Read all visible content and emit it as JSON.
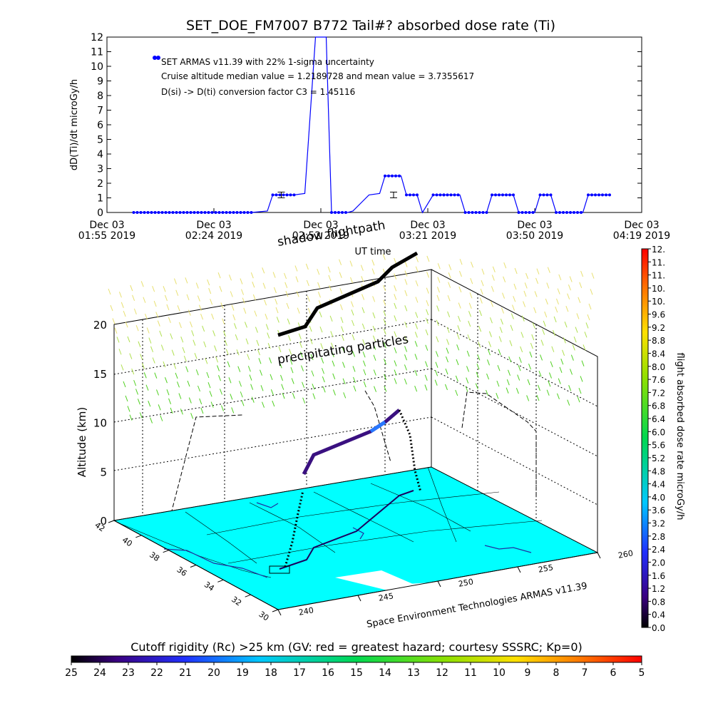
{
  "chart_data": [
    {
      "type": "line",
      "title": "SET_DOE_FM7007  B772 Tail#? absorbed dose rate (Ti)",
      "ylabel": "dD(Ti)/dt microGy/h",
      "xlabel": "UT time",
      "ylim": [
        0,
        12
      ],
      "yticks": [
        "0",
        "1",
        "2",
        "3",
        "4",
        "5",
        "6",
        "7",
        "8",
        "9",
        "10",
        "11",
        "12"
      ],
      "xtick_labels": [
        {
          "date": "Dec 03",
          "time": "01:55 2019"
        },
        {
          "date": "Dec 03",
          "time": "02:24 2019"
        },
        {
          "date": "Dec 03",
          "time": "02:52 2019"
        },
        {
          "date": "Dec 03",
          "time": "03:21 2019"
        },
        {
          "date": "Dec 03",
          "time": "03:50 2019"
        },
        {
          "date": "Dec 03",
          "time": "04:19 2019"
        }
      ],
      "legend_lines": [
        "SET ARMAS v11.39 with 22% 1-sigma uncertainty",
        "Cruise altitude median value = 1.2189728 and mean value = 3.7355617",
        "D(si) -> D(ti) conversion factor C3 = 1.45116"
      ],
      "series_color": "#0000ff",
      "x": [
        0.05,
        0.27,
        0.3,
        0.31,
        0.35,
        0.37,
        0.39,
        0.41,
        0.42,
        0.45,
        0.46,
        0.49,
        0.51,
        0.52,
        0.55,
        0.56,
        0.58,
        0.59,
        0.61,
        0.63,
        0.66,
        0.67,
        0.71,
        0.72,
        0.76,
        0.77,
        0.8,
        0.81,
        0.83,
        0.84,
        0.89,
        0.9,
        0.94
      ],
      "values": [
        0,
        0,
        0.1,
        1.2,
        1.2,
        1.3,
        12,
        12,
        0,
        0,
        0.1,
        1.2,
        1.3,
        2.5,
        2.5,
        1.2,
        1.2,
        0,
        1.2,
        1.2,
        1.2,
        0,
        0,
        1.2,
        1.2,
        0,
        0,
        1.2,
        1.2,
        0,
        0,
        1.2,
        1.2
      ]
    },
    {
      "type": "line",
      "ylabel": "Altitude (km)",
      "zticks": [
        "0",
        "5",
        "10",
        "15",
        "20"
      ],
      "lat_ticks": [
        "42",
        "40",
        "38",
        "36",
        "34",
        "32",
        "30"
      ],
      "lon_ticks": [
        "240",
        "245",
        "250",
        "255",
        "260"
      ],
      "annotations": [
        "shadow flightpath",
        "UT time",
        "precipitating particles"
      ],
      "footer": "Space Environment Technologies ARMAS v11.39"
    },
    {
      "type": "heatmap",
      "colorbar_label": "flight absorbed dose rate microGy/h",
      "colorbar_ticks": [
        "0.0",
        "0.4",
        "0.8",
        "1.2",
        "1.6",
        "2.0",
        "2.4",
        "2.8",
        "3.2",
        "3.6",
        "4.0",
        "4.4",
        "4.8",
        "5.2",
        "5.6",
        "6.0",
        "6.4",
        "6.8",
        "7.2",
        "7.6",
        "8.0",
        "8.4",
        "8.8",
        "9.2",
        "9.6",
        "10.",
        "10.",
        "11.",
        "11.",
        "12."
      ]
    },
    {
      "type": "heatmap",
      "title": "Cutoff rigidity (Rc) >25 km (GV: red = greatest hazard; courtesy SSSRC; Kp=0)",
      "ticks": [
        "25",
        "24",
        "23",
        "22",
        "21",
        "20",
        "19",
        "18",
        "17",
        "16",
        "15",
        "14",
        "13",
        "12",
        "11",
        "10",
        "9",
        "8",
        "7",
        "6",
        "5"
      ]
    }
  ]
}
